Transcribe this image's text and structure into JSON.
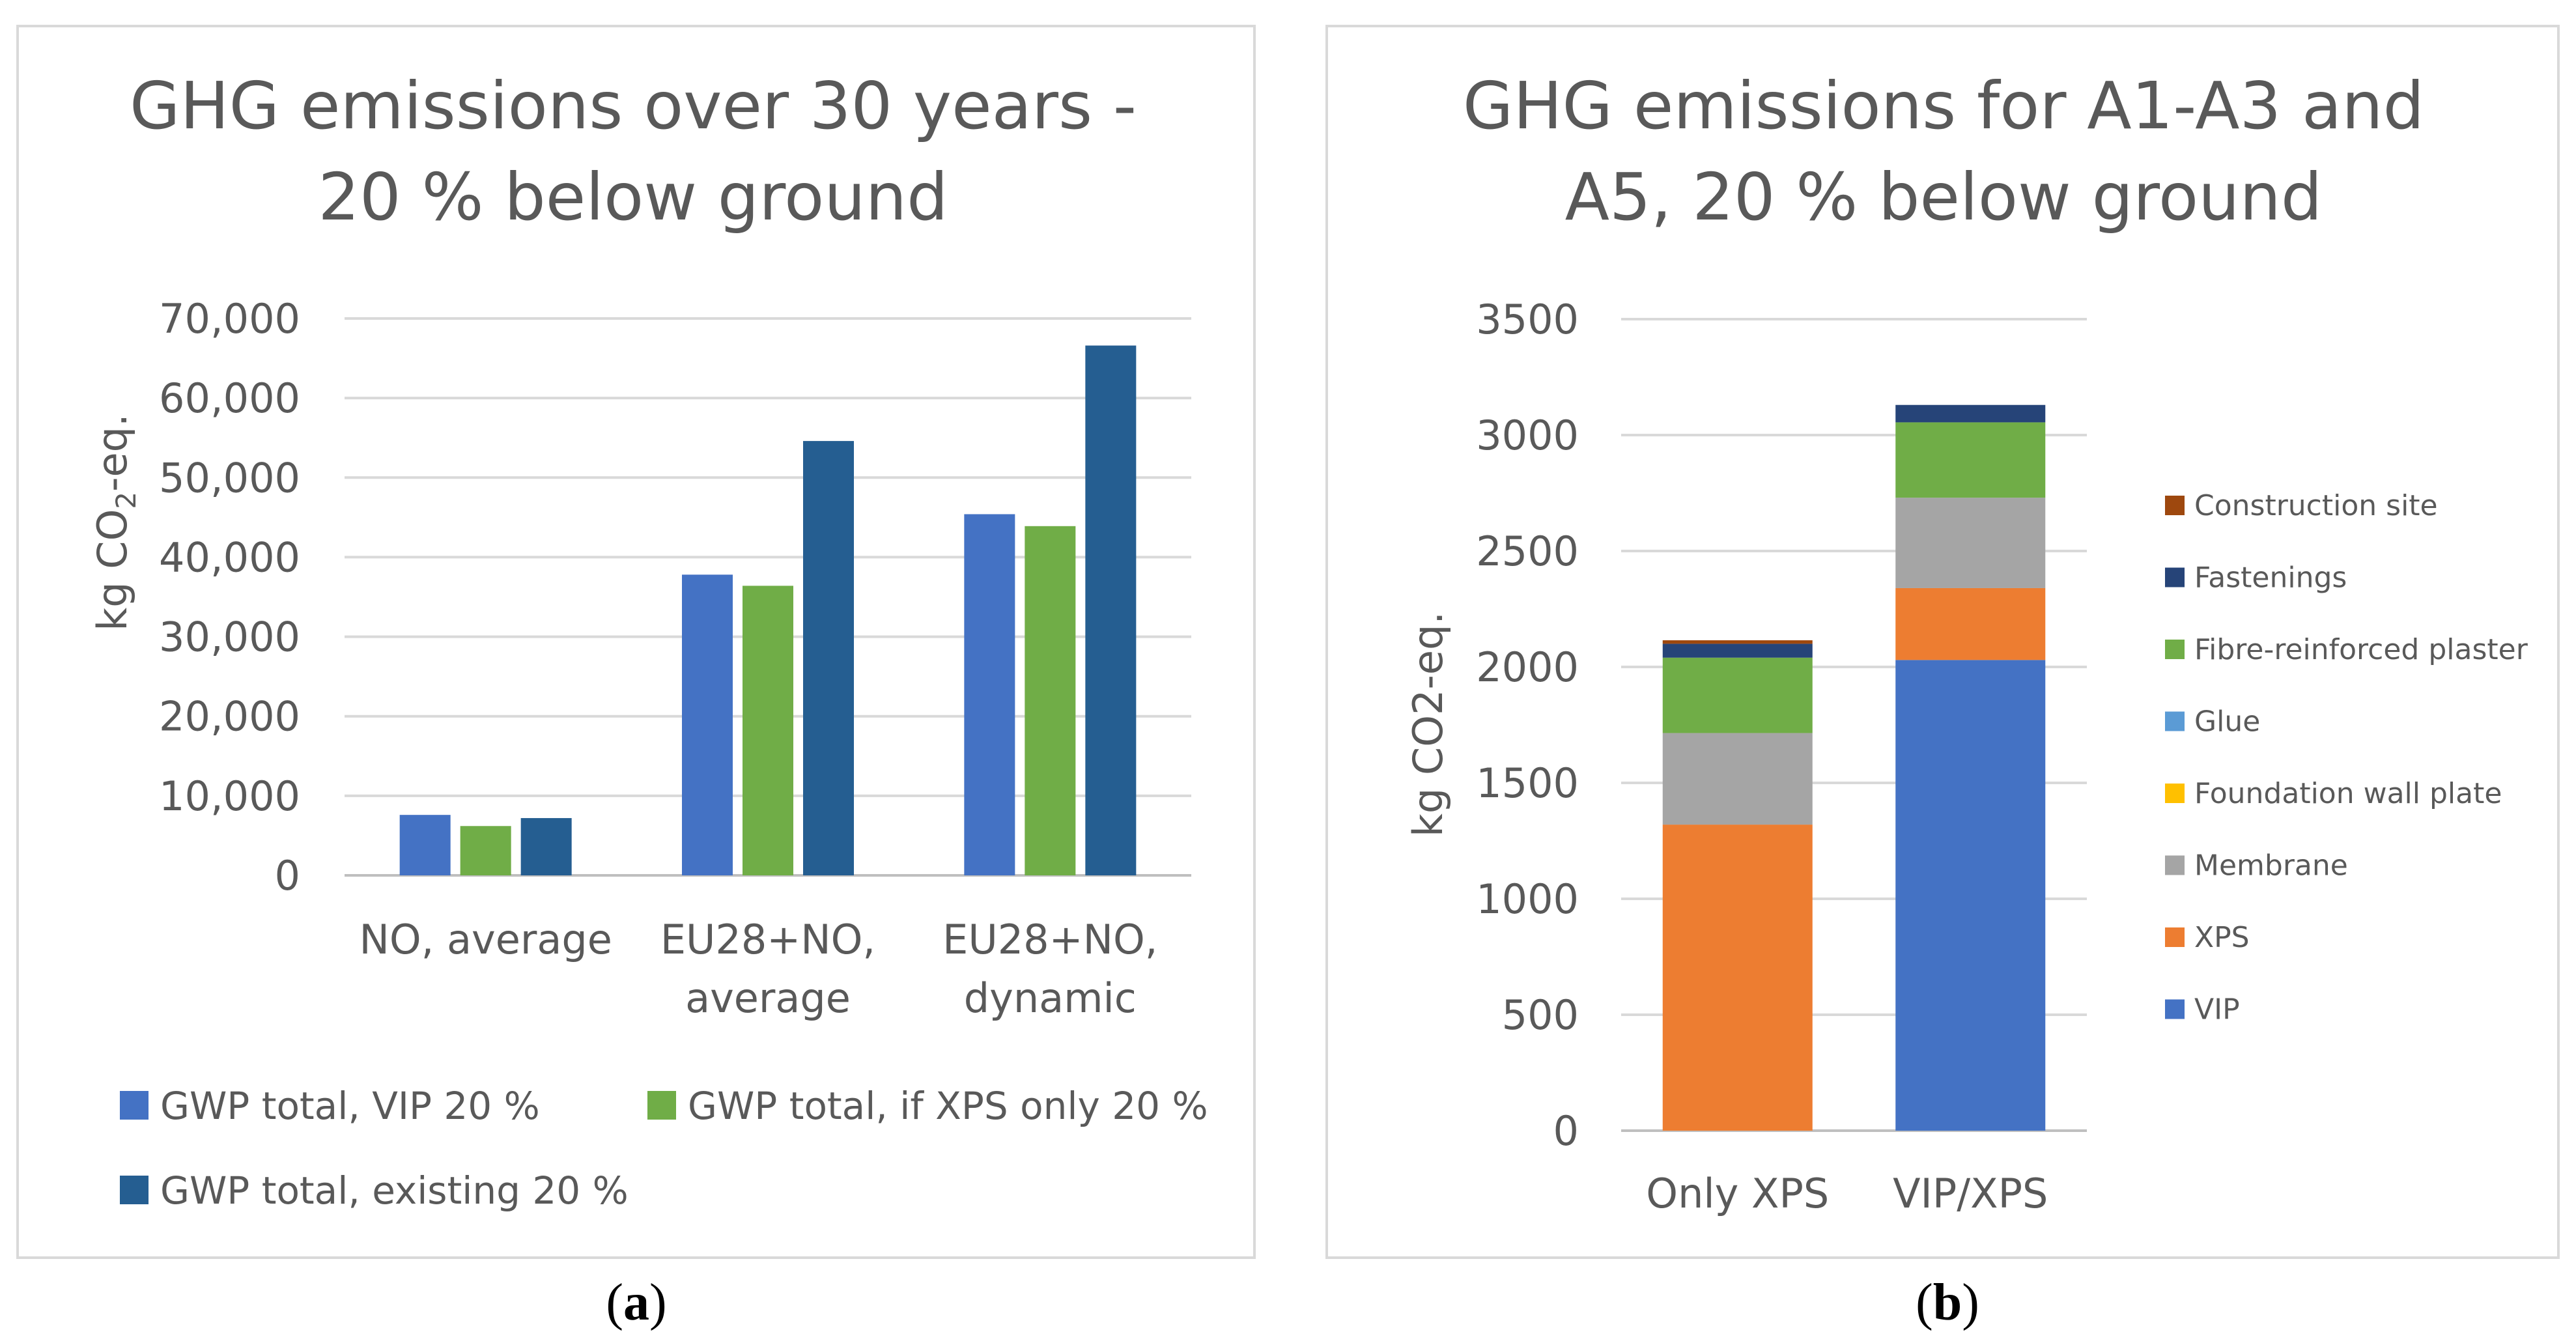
{
  "chart_data": [
    {
      "type": "bar",
      "title_lines": [
        "GHG emissions over 30 years -",
        "20 % below ground"
      ],
      "ylabel": "kg CO",
      "ylabel_sub": "2",
      "ylabel_suffix": "-eq.",
      "ylim": [
        0,
        70000
      ],
      "yticks": [
        "0",
        "10,000",
        "20,000",
        "30,000",
        "40,000",
        "50,000",
        "60,000",
        "70,000"
      ],
      "categories": [
        [
          "NO, average"
        ],
        [
          "EU28+NO,",
          "average"
        ],
        [
          "EU28+NO,",
          "dynamic"
        ]
      ],
      "series": [
        {
          "name": "GWP total, VIP 20 %",
          "color": "#4472c4",
          "values": [
            7600,
            37800,
            45400
          ]
        },
        {
          "name": "GWP total, if XPS only 20 %",
          "color": "#70ad47",
          "values": [
            6200,
            36400,
            43900
          ]
        },
        {
          "name": "GWP total, existing 20 %",
          "color": "#255e91",
          "values": [
            7200,
            54600,
            66600
          ]
        }
      ],
      "legend": "bottom",
      "grid": true,
      "caption_letter": "a"
    },
    {
      "type": "bar",
      "stacked": true,
      "title_lines": [
        "GHG emissions for A1-A3 and",
        "A5, 20 % below ground"
      ],
      "ylabel": "kg CO2-eq.",
      "ylim": [
        0,
        3500
      ],
      "yticks": [
        "0",
        "500",
        "1000",
        "1500",
        "2000",
        "2500",
        "3000",
        "3500"
      ],
      "categories": [
        "Only XPS",
        "VIP/XPS"
      ],
      "series": [
        {
          "name": "VIP",
          "color": "#4472c4",
          "values": [
            0,
            2030
          ]
        },
        {
          "name": "XPS",
          "color": "#ed7d31",
          "values": [
            1320,
            310
          ]
        },
        {
          "name": "Membrane",
          "color": "#a5a5a5",
          "values": [
            395,
            390
          ]
        },
        {
          "name": "Foundation wall plate",
          "color": "#ffc000",
          "values": [
            0,
            0
          ]
        },
        {
          "name": "Glue",
          "color": "#5b9bd5",
          "values": [
            0,
            0
          ]
        },
        {
          "name": "Fibre-reinforced plaster",
          "color": "#70ad47",
          "values": [
            325,
            325
          ]
        },
        {
          "name": "Fastenings",
          "color": "#264478",
          "values": [
            60,
            75
          ]
        },
        {
          "name": "Construction site",
          "color": "#9e480e",
          "values": [
            15,
            0
          ]
        }
      ],
      "legend": "right",
      "grid": true,
      "caption_letter": "b"
    }
  ]
}
